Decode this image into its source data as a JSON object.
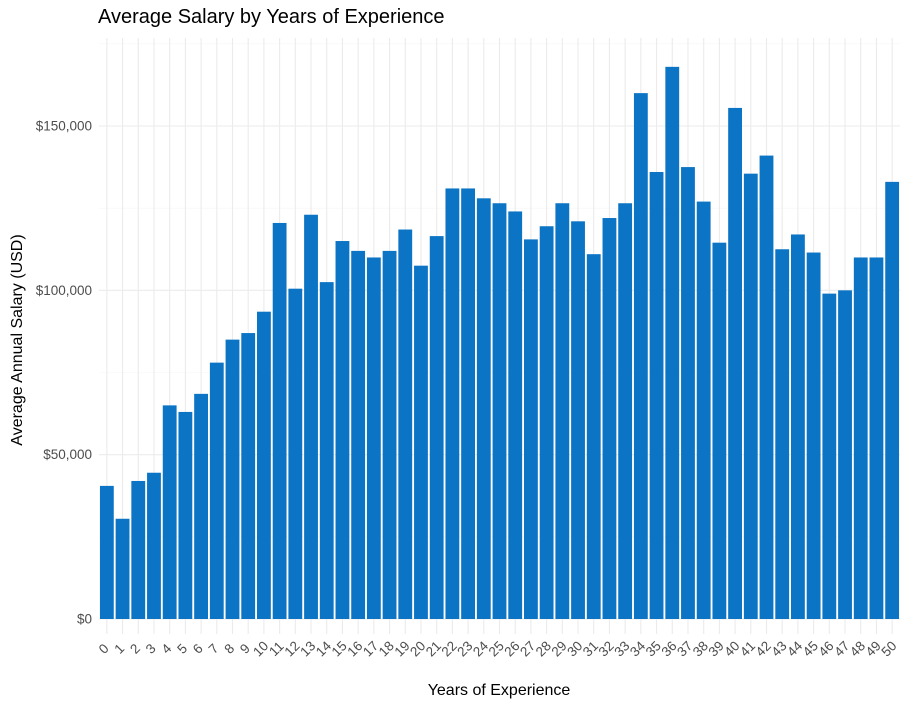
{
  "chart_data": {
    "type": "bar",
    "title": "Average Salary by Years of Experience",
    "xlabel": "Years of Experience",
    "ylabel": "Average Annual Salary (USD)",
    "categories": [
      "0",
      "1",
      "2",
      "3",
      "4",
      "5",
      "6",
      "7",
      "8",
      "9",
      "10",
      "11",
      "12",
      "13",
      "14",
      "15",
      "16",
      "17",
      "18",
      "19",
      "20",
      "21",
      "22",
      "23",
      "24",
      "25",
      "26",
      "27",
      "28",
      "29",
      "30",
      "31",
      "32",
      "33",
      "34",
      "35",
      "36",
      "37",
      "38",
      "39",
      "40",
      "41",
      "42",
      "43",
      "44",
      "45",
      "46",
      "47",
      "48",
      "49",
      "50"
    ],
    "values": [
      40500,
      30500,
      42000,
      44500,
      65000,
      63000,
      68500,
      78000,
      85000,
      87000,
      93500,
      120500,
      100500,
      123000,
      102500,
      115000,
      112000,
      110000,
      112000,
      118500,
      107500,
      116500,
      131000,
      131000,
      128000,
      126500,
      124000,
      115500,
      119500,
      126500,
      121000,
      111000,
      122000,
      126500,
      160000,
      136000,
      168000,
      137500,
      127000,
      114500,
      155500,
      135500,
      141000,
      112500,
      117000,
      111500,
      99000,
      100000,
      110000,
      110000,
      133000
    ],
    "ylim": [
      0,
      175000
    ],
    "yticks": [
      0,
      50000,
      100000,
      150000
    ],
    "ytick_labels": [
      "$0",
      "$50,000",
      "$100,000",
      "$150,000"
    ],
    "grid": true,
    "colors": {
      "bar": "#0B74C4",
      "grid_major": "#EBEBEB",
      "grid_minor": "#F5F5F5",
      "tick_text": "#4D4D4D",
      "axis_text": "#000000"
    }
  }
}
